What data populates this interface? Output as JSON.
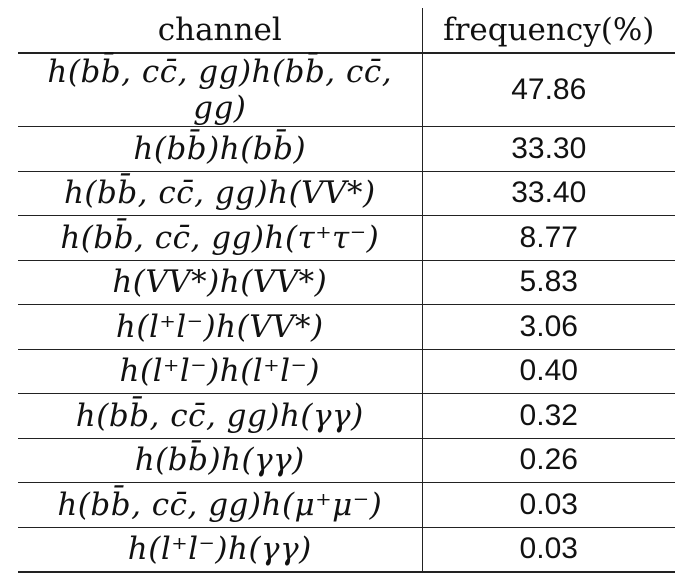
{
  "table": {
    "headers": {
      "channel": "channel",
      "frequency": "frequency(%)"
    },
    "rows": [
      {
        "channel": "h(bb̄, cc̄, gg)h(bb̄, cc̄, gg)",
        "frequency": "47.86"
      },
      {
        "channel": "h(bb̄)h(bb̄)",
        "frequency": "33.30"
      },
      {
        "channel": "h(bb̄, cc̄, gg)h(VV*)",
        "frequency": "33.40"
      },
      {
        "channel": "h(bb̄, cc̄, gg)h(τ⁺τ⁻)",
        "frequency": "8.77"
      },
      {
        "channel": "h(VV*)h(VV*)",
        "frequency": "5.83"
      },
      {
        "channel": "h(l⁺l⁻)h(VV*)",
        "frequency": "3.06"
      },
      {
        "channel": "h(l⁺l⁻)h(l⁺l⁻)",
        "frequency": "0.40"
      },
      {
        "channel": "h(bb̄, cc̄, gg)h(γγ)",
        "frequency": "0.32"
      },
      {
        "channel": "h(bb̄)h(γγ)",
        "frequency": "0.26"
      },
      {
        "channel": "h(bb̄, cc̄, gg)h(μ⁺μ⁻)",
        "frequency": "0.03"
      },
      {
        "channel": "h(l⁺l⁻)h(γγ)",
        "frequency": "0.03"
      }
    ]
  }
}
